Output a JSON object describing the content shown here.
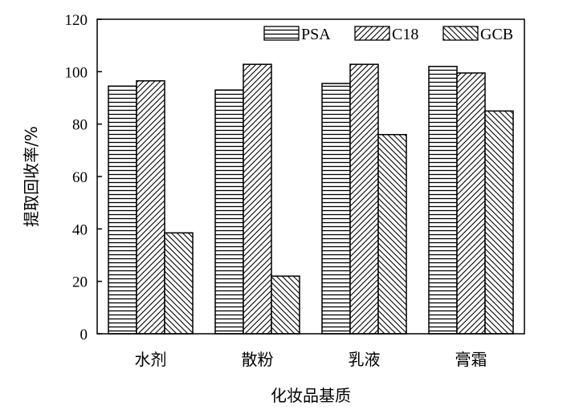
{
  "chart_data": {
    "type": "bar",
    "xlabel": "化妆品基质",
    "ylabel": "提取回收率/%",
    "categories": [
      "水剂",
      "散粉",
      "乳液",
      "膏霜"
    ],
    "series": [
      {
        "name": "PSA",
        "values": [
          94.5,
          93,
          95.5,
          102
        ],
        "pattern": "horizontal"
      },
      {
        "name": "C18",
        "values": [
          96.5,
          102.8,
          102.8,
          99.5
        ],
        "pattern": "diagonal-up"
      },
      {
        "name": "GCB",
        "values": [
          38.5,
          22,
          76,
          85
        ],
        "pattern": "diagonal-down"
      }
    ],
    "ylim": [
      0,
      120
    ],
    "yticks": [
      "0",
      "20",
      "40",
      "60",
      "80",
      "100",
      "120"
    ],
    "grid": false,
    "legend": "top-right",
    "colors": {
      "stroke": "#000000",
      "fill": "#ffffff"
    }
  }
}
